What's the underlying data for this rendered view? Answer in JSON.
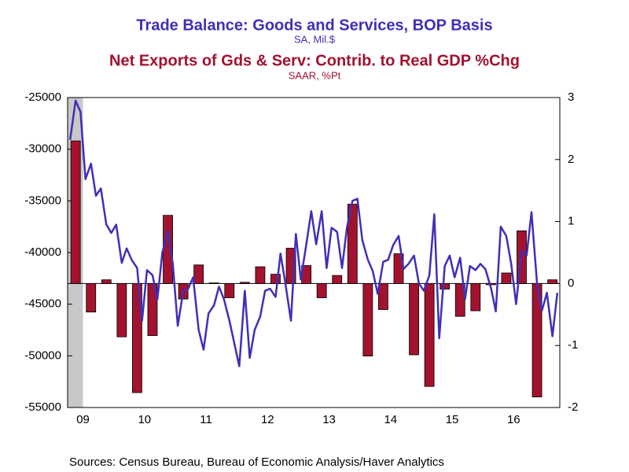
{
  "chart_data": {
    "type": "combo",
    "titles": [
      {
        "text": "Trade Balance: Goods and Services, BOP Basis",
        "subtitle": "SA, Mil.$",
        "color": "#3f2fb8"
      },
      {
        "text": "Net Exports of Gds & Serv: Contrib. to Real GDP %Chg",
        "subtitle": "SAAR, %Pt",
        "color": "#a3122e"
      }
    ],
    "source": "Sources:  Census Bureau, Bureau of Economic Analysis/Haver Analytics",
    "xlim": [
      2009.25,
      2017.25
    ],
    "xticks": [
      {
        "value": 2009.5,
        "label": "09"
      },
      {
        "value": 2010.5,
        "label": "10"
      },
      {
        "value": 2011.5,
        "label": "11"
      },
      {
        "value": 2012.5,
        "label": "12"
      },
      {
        "value": 2013.5,
        "label": "13"
      },
      {
        "value": 2014.5,
        "label": "14"
      },
      {
        "value": 2015.5,
        "label": "15"
      },
      {
        "value": 2016.5,
        "label": "16"
      }
    ],
    "recession": [
      2009.25,
      2009.5
    ],
    "ylim": [
      -55000,
      -25000
    ],
    "yticks": [
      -55000,
      -50000,
      -45000,
      -40000,
      -35000,
      -30000,
      -25000
    ],
    "y2lim": [
      -2,
      3
    ],
    "y2ticks": [
      -2,
      -1,
      0,
      1,
      2,
      3
    ],
    "series": [
      {
        "type": "bar",
        "axis": "y2",
        "color": "#a3122e",
        "x": [
          2009.38,
          2009.63,
          2009.88,
          2010.13,
          2010.38,
          2010.63,
          2010.88,
          2011.13,
          2011.38,
          2011.63,
          2011.88,
          2012.13,
          2012.38,
          2012.63,
          2012.88,
          2013.13,
          2013.38,
          2013.63,
          2013.88,
          2014.13,
          2014.38,
          2014.63,
          2014.88,
          2015.13,
          2015.38,
          2015.63,
          2015.88,
          2016.13,
          2016.38,
          2016.63,
          2016.88,
          2017.13
        ],
        "values": [
          2.3,
          -0.46,
          0.06,
          -0.86,
          -1.76,
          -0.84,
          1.1,
          -0.25,
          0.3,
          0.01,
          -0.23,
          0.02,
          0.27,
          0.15,
          0.57,
          0.29,
          -0.23,
          0.13,
          1.28,
          -1.17,
          -0.42,
          0.48,
          -1.15,
          -1.66,
          -0.09,
          -0.53,
          -0.44,
          -0.02,
          0.17,
          0.85,
          -1.83,
          0.06
        ]
      },
      {
        "type": "line",
        "color": "#3f2fb8",
        "x": [
          2009.29,
          2009.38,
          2009.46,
          2009.54,
          2009.63,
          2009.71,
          2009.79,
          2009.88,
          2009.96,
          2010.04,
          2010.13,
          2010.21,
          2010.29,
          2010.38,
          2010.46,
          2010.54,
          2010.63,
          2010.71,
          2010.79,
          2010.88,
          2010.96,
          2011.04,
          2011.13,
          2011.21,
          2011.29,
          2011.38,
          2011.46,
          2011.54,
          2011.63,
          2011.71,
          2011.79,
          2011.88,
          2011.96,
          2012.04,
          2012.13,
          2012.21,
          2012.29,
          2012.38,
          2012.46,
          2012.54,
          2012.63,
          2012.71,
          2012.79,
          2012.88,
          2012.96,
          2013.04,
          2013.13,
          2013.21,
          2013.29,
          2013.38,
          2013.46,
          2013.54,
          2013.63,
          2013.71,
          2013.79,
          2013.88,
          2013.96,
          2014.04,
          2014.13,
          2014.21,
          2014.29,
          2014.38,
          2014.46,
          2014.54,
          2014.63,
          2014.71,
          2014.79,
          2014.88,
          2014.96,
          2015.04,
          2015.13,
          2015.21,
          2015.29,
          2015.38,
          2015.46,
          2015.54,
          2015.63,
          2015.71,
          2015.79,
          2015.88,
          2015.96,
          2016.04,
          2016.13,
          2016.21,
          2016.29,
          2016.38,
          2016.46,
          2016.54,
          2016.63,
          2016.71,
          2016.79,
          2016.88,
          2016.96,
          2017.04,
          2017.13,
          2017.21
        ],
        "values": [
          -29100,
          -25300,
          -26400,
          -32900,
          -31400,
          -34500,
          -33800,
          -37300,
          -38100,
          -37300,
          -41000,
          -39600,
          -40700,
          -41500,
          -46600,
          -41700,
          -42200,
          -44500,
          -40000,
          -37900,
          -41100,
          -47100,
          -43700,
          -43500,
          -42400,
          -47500,
          -49400,
          -45900,
          -45100,
          -43300,
          -44500,
          -46600,
          -48800,
          -51000,
          -43700,
          -50200,
          -47500,
          -46200,
          -43700,
          -43500,
          -44300,
          -40100,
          -43000,
          -46600,
          -38200,
          -42600,
          -39200,
          -36000,
          -39200,
          -36000,
          -41500,
          -37600,
          -38000,
          -41500,
          -37600,
          -35000,
          -34800,
          -38800,
          -40700,
          -41800,
          -44000,
          -40900,
          -40700,
          -39300,
          -38400,
          -41600,
          -41100,
          -40300,
          -43000,
          -43700,
          -42200,
          -36300,
          -48300,
          -41300,
          -40300,
          -42400,
          -40500,
          -44500,
          -41300,
          -41700,
          -41100,
          -41600,
          -43400,
          -45700,
          -37500,
          -38400,
          -41100,
          -45000,
          -39800,
          -40300,
          -36100,
          -43000,
          -45600,
          -43900,
          -48100,
          -43900
        ]
      }
    ]
  }
}
